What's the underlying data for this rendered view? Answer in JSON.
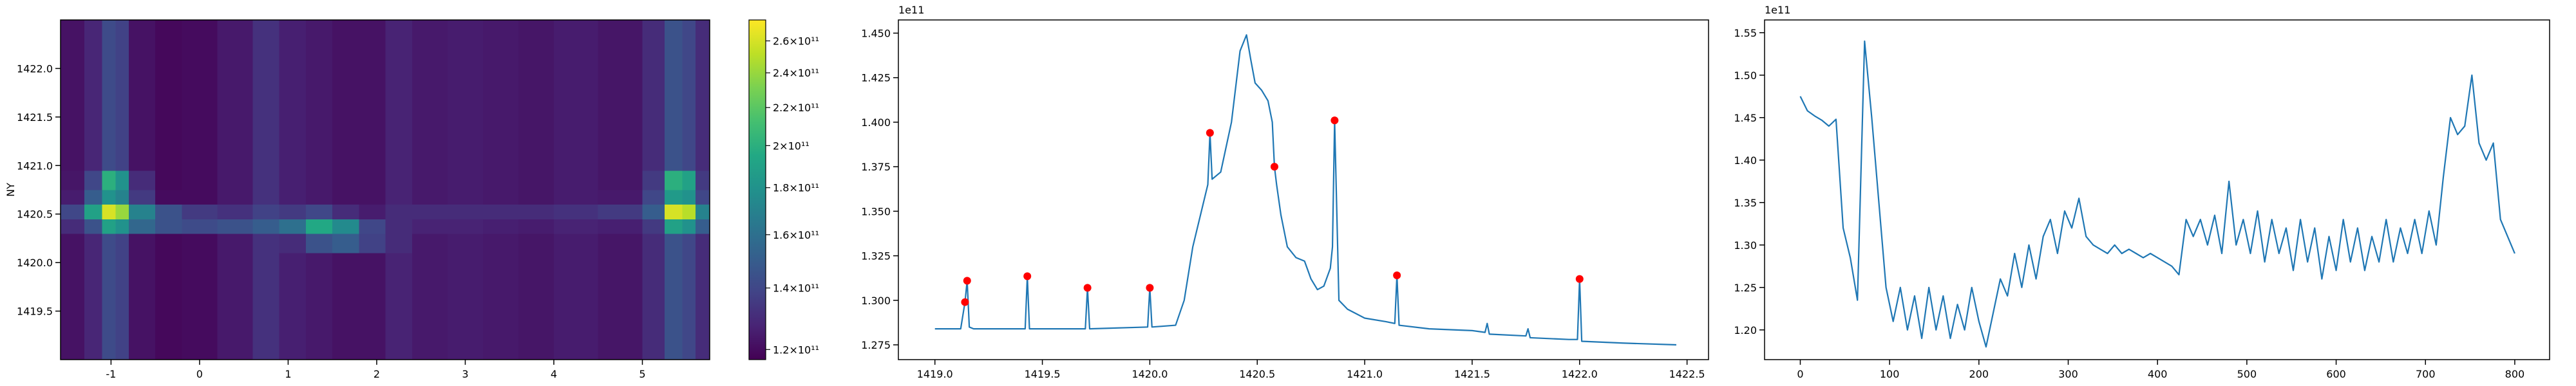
{
  "chart_data": [
    {
      "type": "heatmap",
      "ylabel": "NY",
      "colormap": "viridis",
      "xlim": [
        -1.57,
        5.76
      ],
      "ylim": [
        1419.0,
        1422.5
      ],
      "xticks": [
        -1,
        0,
        1,
        2,
        3,
        4,
        5
      ],
      "yticks": [
        1419.5,
        {
          "value": 1420,
          "label": "1420.0"
        },
        1420.5,
        {
          "value": 1421,
          "label": "1421.0"
        },
        1421.5,
        {
          "value": 1422,
          "label": "1422.0"
        }
      ],
      "x_edges": [
        -1.57,
        -1.3,
        -1.1,
        -0.95,
        -0.8,
        -0.5,
        -0.2,
        0.2,
        0.6,
        0.9,
        1.2,
        1.5,
        1.8,
        2.1,
        2.4,
        2.8,
        3.2,
        3.6,
        4.0,
        4.5,
        5.0,
        5.25,
        5.45,
        5.6,
        5.76
      ],
      "y_edges": [
        1419.0,
        1419.6,
        1420.1,
        1420.3,
        1420.45,
        1420.6,
        1420.75,
        1420.95,
        1421.4,
        1422.0,
        1422.5
      ],
      "z": [
        [
          122000000000.0,
          128000000000.0,
          142000000000.0,
          138000000000.0,
          122000000000.0,
          119000000000.0,
          120000000000.0,
          124000000000.0,
          132000000000.0,
          126000000000.0,
          124000000000.0,
          122000000000.0,
          122000000000.0,
          127000000000.0,
          124000000000.0,
          125000000000.0,
          124000000000.0,
          123000000000.0,
          125000000000.0,
          123000000000.0,
          130000000000.0,
          145000000000.0,
          140000000000.0,
          130000000000.0
        ],
        [
          122000000000.0,
          128000000000.0,
          142000000000.0,
          138000000000.0,
          122000000000.0,
          119000000000.0,
          120000000000.0,
          124000000000.0,
          132000000000.0,
          126000000000.0,
          124000000000.0,
          122000000000.0,
          122000000000.0,
          127000000000.0,
          124000000000.0,
          125000000000.0,
          124000000000.0,
          123000000000.0,
          125000000000.0,
          123000000000.0,
          130000000000.0,
          145000000000.0,
          140000000000.0,
          130000000000.0
        ],
        [
          122000000000.0,
          128000000000.0,
          142000000000.0,
          138000000000.0,
          122000000000.0,
          119000000000.0,
          120000000000.0,
          124000000000.0,
          132000000000.0,
          130000000000.0,
          145000000000.0,
          150000000000.0,
          138000000000.0,
          130000000000.0,
          124000000000.0,
          125000000000.0,
          124000000000.0,
          123000000000.0,
          125000000000.0,
          123000000000.0,
          130000000000.0,
          145000000000.0,
          140000000000.0,
          130000000000.0
        ],
        [
          130000000000.0,
          145000000000.0,
          190000000000.0,
          180000000000.0,
          155000000000.0,
          145000000000.0,
          142000000000.0,
          145000000000.0,
          150000000000.0,
          160000000000.0,
          195000000000.0,
          175000000000.0,
          140000000000.0,
          130000000000.0,
          127000000000.0,
          127000000000.0,
          126000000000.0,
          125000000000.0,
          127000000000.0,
          126000000000.0,
          135000000000.0,
          190000000000.0,
          180000000000.0,
          150000000000.0
        ],
        [
          140000000000.0,
          190000000000.0,
          260000000000.0,
          240000000000.0,
          170000000000.0,
          145000000000.0,
          135000000000.0,
          132000000000.0,
          138000000000.0,
          135000000000.0,
          140000000000.0,
          130000000000.0,
          125000000000.0,
          130000000000.0,
          130000000000.0,
          130000000000.0,
          130000000000.0,
          130000000000.0,
          132000000000.0,
          135000000000.0,
          150000000000.0,
          260000000000.0,
          250000000000.0,
          170000000000.0
        ],
        [
          125000000000.0,
          150000000000.0,
          180000000000.0,
          170000000000.0,
          135000000000.0,
          120000000000.0,
          120000000000.0,
          124000000000.0,
          132000000000.0,
          126000000000.0,
          124000000000.0,
          122000000000.0,
          122000000000.0,
          127000000000.0,
          124000000000.0,
          125000000000.0,
          124000000000.0,
          123000000000.0,
          125000000000.0,
          124000000000.0,
          140000000000.0,
          185000000000.0,
          180000000000.0,
          140000000000.0
        ],
        [
          123000000000.0,
          140000000000.0,
          200000000000.0,
          180000000000.0,
          130000000000.0,
          119000000000.0,
          120000000000.0,
          124000000000.0,
          132000000000.0,
          126000000000.0,
          124000000000.0,
          122000000000.0,
          122000000000.0,
          127000000000.0,
          124000000000.0,
          125000000000.0,
          124000000000.0,
          123000000000.0,
          125000000000.0,
          123000000000.0,
          135000000000.0,
          200000000000.0,
          190000000000.0,
          135000000000.0
        ],
        [
          122000000000.0,
          128000000000.0,
          142000000000.0,
          138000000000.0,
          122000000000.0,
          119000000000.0,
          120000000000.0,
          124000000000.0,
          132000000000.0,
          126000000000.0,
          124000000000.0,
          122000000000.0,
          122000000000.0,
          127000000000.0,
          124000000000.0,
          125000000000.0,
          124000000000.0,
          123000000000.0,
          125000000000.0,
          123000000000.0,
          130000000000.0,
          145000000000.0,
          140000000000.0,
          130000000000.0
        ],
        [
          122000000000.0,
          128000000000.0,
          142000000000.0,
          138000000000.0,
          122000000000.0,
          119000000000.0,
          120000000000.0,
          124000000000.0,
          132000000000.0,
          126000000000.0,
          124000000000.0,
          122000000000.0,
          122000000000.0,
          127000000000.0,
          124000000000.0,
          125000000000.0,
          124000000000.0,
          123000000000.0,
          125000000000.0,
          123000000000.0,
          130000000000.0,
          145000000000.0,
          140000000000.0,
          130000000000.0
        ],
        [
          122000000000.0,
          128000000000.0,
          142000000000.0,
          138000000000.0,
          122000000000.0,
          119000000000.0,
          120000000000.0,
          124000000000.0,
          132000000000.0,
          126000000000.0,
          124000000000.0,
          122000000000.0,
          122000000000.0,
          127000000000.0,
          124000000000.0,
          125000000000.0,
          124000000000.0,
          123000000000.0,
          125000000000.0,
          123000000000.0,
          130000000000.0,
          145000000000.0,
          140000000000.0,
          130000000000.0
        ]
      ],
      "colorbar": {
        "scale": "log",
        "clim": [
          117000000000.0,
          274000000000.0
        ],
        "ticks": [
          {
            "value": 120000000000.0,
            "label": "1.2×10¹¹"
          },
          {
            "value": 140000000000.0,
            "label": "1.4×10¹¹"
          },
          {
            "value": 160000000000.0,
            "label": "1.6×10¹¹"
          },
          {
            "value": 180000000000.0,
            "label": "1.8×10¹¹"
          },
          {
            "value": 200000000000.0,
            "label": "2×10¹¹"
          },
          {
            "value": 220000000000.0,
            "label": "2.2×10¹¹"
          },
          {
            "value": 240000000000.0,
            "label": "2.4×10¹¹"
          },
          {
            "value": 260000000000.0,
            "label": "2.6×10¹¹"
          }
        ]
      }
    },
    {
      "type": "line",
      "offset_text": "1e11",
      "xlim": [
        1418.83,
        1422.6
      ],
      "ylim": [
        1.2667,
        1.4574
      ],
      "xticks": [
        {
          "value": 1419,
          "label": "1419.0"
        },
        1419.5,
        {
          "value": 1420,
          "label": "1420.0"
        },
        1420.5,
        {
          "value": 1421,
          "label": "1421.0"
        },
        1421.5,
        {
          "value": 1422,
          "label": "1422.0"
        },
        1422.5
      ],
      "yticks": [
        1.275,
        {
          "value": 1.3,
          "label": "1.300"
        },
        1.325,
        {
          "value": 1.35,
          "label": "1.350"
        },
        1.375,
        {
          "value": 1.4,
          "label": "1.400"
        },
        1.425,
        {
          "value": 1.45,
          "label": "1.450"
        }
      ],
      "series": [
        {
          "color": "#1f77b4",
          "x": [
            1419.0,
            1419.12,
            1419.14,
            1419.15,
            1419.16,
            1419.18,
            1419.42,
            1419.43,
            1419.44,
            1419.7,
            1419.71,
            1419.72,
            1419.99,
            1420.0,
            1420.01,
            1420.12,
            1420.16,
            1420.2,
            1420.24,
            1420.27,
            1420.28,
            1420.29,
            1420.33,
            1420.38,
            1420.42,
            1420.45,
            1420.47,
            1420.49,
            1420.52,
            1420.55,
            1420.57,
            1420.58,
            1420.59,
            1420.61,
            1420.64,
            1420.68,
            1420.72,
            1420.75,
            1420.78,
            1420.81,
            1420.84,
            1420.85,
            1420.86,
            1420.88,
            1420.92,
            1421.0,
            1421.1,
            1421.14,
            1421.15,
            1421.16,
            1421.3,
            1421.5,
            1421.56,
            1421.57,
            1421.58,
            1421.75,
            1421.76,
            1421.77,
            1421.95,
            1421.99,
            1422.0,
            1422.01,
            1422.2,
            1422.45
          ],
          "values": [
            1.284,
            1.284,
            1.299,
            1.311,
            1.285,
            1.284,
            1.284,
            1.3135,
            1.284,
            1.284,
            1.307,
            1.284,
            1.285,
            1.307,
            1.285,
            1.286,
            1.3,
            1.33,
            1.35,
            1.365,
            1.394,
            1.368,
            1.372,
            1.4,
            1.44,
            1.449,
            1.435,
            1.422,
            1.418,
            1.412,
            1.4,
            1.375,
            1.365,
            1.348,
            1.33,
            1.324,
            1.322,
            1.312,
            1.306,
            1.308,
            1.318,
            1.33,
            1.401,
            1.3,
            1.295,
            1.29,
            1.288,
            1.287,
            1.314,
            1.286,
            1.284,
            1.283,
            1.282,
            1.287,
            1.281,
            1.28,
            1.284,
            1.279,
            1.278,
            1.278,
            1.312,
            1.277,
            1.276,
            1.275
          ]
        },
        {
          "color": "red",
          "marker": "o",
          "x": [
            1419.14,
            1419.15,
            1419.43,
            1419.71,
            1420.0,
            1420.28,
            1420.58,
            1420.86,
            1421.15,
            1422.0
          ],
          "values": [
            1.299,
            1.311,
            1.3135,
            1.307,
            1.307,
            1.394,
            1.375,
            1.401,
            1.314,
            1.312
          ]
        }
      ]
    },
    {
      "type": "line",
      "offset_text": "1e11",
      "xlim": [
        -40,
        839
      ],
      "ylim": [
        1.165,
        1.565
      ],
      "xticks": [
        0,
        100,
        200,
        300,
        400,
        500,
        600,
        700,
        800
      ],
      "yticks": [
        {
          "value": 1.2,
          "label": "1.20"
        },
        1.25,
        {
          "value": 1.3,
          "label": "1.30"
        },
        1.35,
        {
          "value": 1.4,
          "label": "1.40"
        },
        1.45,
        {
          "value": 1.5,
          "label": "1.50"
        },
        1.55
      ],
      "series": [
        {
          "color": "#1f77b4",
          "x": [
            0,
            8,
            16,
            24,
            32,
            40,
            48,
            56,
            64,
            72,
            80,
            88,
            96,
            104,
            112,
            120,
            128,
            136,
            144,
            152,
            160,
            168,
            176,
            184,
            192,
            200,
            208,
            216,
            224,
            232,
            240,
            248,
            256,
            264,
            272,
            280,
            288,
            296,
            304,
            312,
            320,
            328,
            336,
            344,
            352,
            360,
            368,
            376,
            384,
            392,
            400,
            408,
            416,
            424,
            432,
            440,
            448,
            456,
            464,
            472,
            480,
            488,
            496,
            504,
            512,
            520,
            528,
            536,
            544,
            552,
            560,
            568,
            576,
            584,
            592,
            600,
            608,
            616,
            624,
            632,
            640,
            648,
            656,
            664,
            672,
            680,
            688,
            696,
            704,
            712,
            720,
            728,
            736,
            744,
            752,
            760,
            768,
            776,
            784,
            792,
            800
          ],
          "values": [
            1.475,
            1.458,
            1.452,
            1.447,
            1.44,
            1.448,
            1.32,
            1.285,
            1.235,
            1.54,
            1.45,
            1.35,
            1.25,
            1.21,
            1.25,
            1.2,
            1.24,
            1.19,
            1.25,
            1.2,
            1.24,
            1.19,
            1.23,
            1.2,
            1.25,
            1.21,
            1.18,
            1.22,
            1.26,
            1.24,
            1.29,
            1.25,
            1.3,
            1.26,
            1.31,
            1.33,
            1.29,
            1.34,
            1.32,
            1.355,
            1.31,
            1.3,
            1.295,
            1.29,
            1.3,
            1.29,
            1.295,
            1.29,
            1.285,
            1.29,
            1.285,
            1.28,
            1.275,
            1.265,
            1.33,
            1.31,
            1.33,
            1.3,
            1.335,
            1.29,
            1.375,
            1.3,
            1.33,
            1.29,
            1.34,
            1.28,
            1.33,
            1.29,
            1.32,
            1.27,
            1.33,
            1.28,
            1.32,
            1.26,
            1.31,
            1.27,
            1.33,
            1.28,
            1.32,
            1.27,
            1.31,
            1.28,
            1.33,
            1.28,
            1.32,
            1.29,
            1.33,
            1.29,
            1.34,
            1.3,
            1.38,
            1.45,
            1.43,
            1.44,
            1.5,
            1.42,
            1.4,
            1.42,
            1.33,
            1.31,
            1.29
          ]
        }
      ]
    }
  ]
}
